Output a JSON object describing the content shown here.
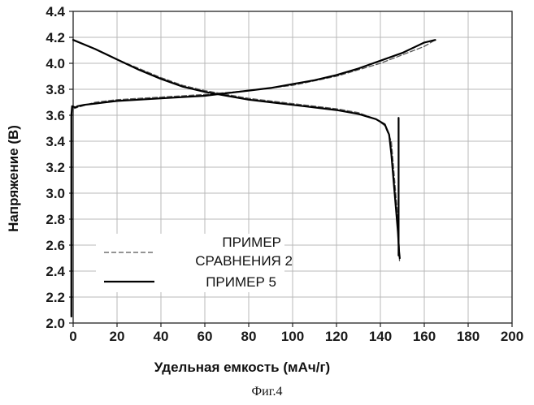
{
  "figure_caption": "Фиг.4",
  "chart_data": {
    "type": "line",
    "title": "",
    "xlabel": "Удельная емкость (мАч/г)",
    "ylabel": "Напряжение (В)",
    "xlim": [
      0,
      200
    ],
    "ylim": [
      2.0,
      4.4
    ],
    "x_ticks": [
      "0",
      "20",
      "40",
      "60",
      "80",
      "100",
      "120",
      "140",
      "160",
      "180",
      "200"
    ],
    "y_ticks": [
      "2.0",
      "2.2",
      "2.4",
      "2.6",
      "2.8",
      "3.0",
      "3.2",
      "3.4",
      "3.6",
      "3.8",
      "4.0",
      "4.2",
      "4.4"
    ],
    "grid": true,
    "legend_position": "lower-left",
    "series": [
      {
        "name": "ПРИМЕР СРАВНЕНИЯ 2",
        "legend_lines": [
          "ПРИМЕР",
          "СРАВНЕНИЯ 2"
        ],
        "style": "dashed",
        "color": "#555555",
        "segments": [
          [
            [
              0,
              4.18
            ],
            [
              10,
              4.11
            ],
            [
              20,
              4.03
            ],
            [
              30,
              3.96
            ],
            [
              40,
              3.89
            ],
            [
              50,
              3.83
            ],
            [
              60,
              3.79
            ],
            [
              70,
              3.76
            ],
            [
              80,
              3.73
            ],
            [
              90,
              3.71
            ],
            [
              100,
              3.69
            ],
            [
              110,
              3.67
            ],
            [
              120,
              3.65
            ],
            [
              130,
              3.62
            ],
            [
              138,
              3.57
            ],
            [
              142,
              3.52
            ],
            [
              145,
              3.4
            ],
            [
              146,
              3.2
            ],
            [
              147,
              3.0
            ],
            [
              148,
              2.8
            ],
            [
              148.5,
              2.6
            ],
            [
              148.7,
              2.48
            ]
          ],
          [
            [
              0,
              3.65
            ],
            [
              10,
              3.7
            ],
            [
              20,
              3.72
            ],
            [
              40,
              3.74
            ],
            [
              60,
              3.76
            ],
            [
              80,
              3.79
            ],
            [
              100,
              3.83
            ],
            [
              120,
              3.9
            ],
            [
              140,
              4.0
            ],
            [
              160,
              4.13
            ],
            [
              165,
              4.18
            ]
          ]
        ]
      },
      {
        "name": "ПРИМЕР 5",
        "legend_lines": [
          "ПРИМЕР 5"
        ],
        "style": "solid",
        "color": "#000000",
        "segments": [
          [
            [
              0,
              4.18
            ],
            [
              10,
              4.11
            ],
            [
              20,
              4.03
            ],
            [
              30,
              3.95
            ],
            [
              40,
              3.88
            ],
            [
              50,
              3.82
            ],
            [
              60,
              3.78
            ],
            [
              70,
              3.75
            ],
            [
              80,
              3.72
            ],
            [
              90,
              3.7
            ],
            [
              100,
              3.68
            ],
            [
              110,
              3.66
            ],
            [
              120,
              3.64
            ],
            [
              130,
              3.61
            ],
            [
              138,
              3.57
            ],
            [
              142,
              3.53
            ],
            [
              144,
              3.45
            ],
            [
              145,
              3.3
            ],
            [
              146,
              3.1
            ],
            [
              147,
              2.9
            ],
            [
              148,
              2.7
            ],
            [
              148.5,
              2.55
            ],
            [
              148.8,
              2.5
            ]
          ],
          [
            [
              -0.8,
              2.05
            ],
            [
              -0.8,
              3.6
            ],
            [
              -0.5,
              3.67
            ],
            [
              1,
              3.66
            ],
            [
              2,
              3.67
            ],
            [
              5,
              3.68
            ],
            [
              10,
              3.69
            ],
            [
              20,
              3.71
            ],
            [
              40,
              3.73
            ],
            [
              60,
              3.75
            ],
            [
              70,
              3.77
            ],
            [
              80,
              3.79
            ],
            [
              90,
              3.81
            ],
            [
              100,
              3.84
            ],
            [
              110,
              3.87
            ],
            [
              120,
              3.91
            ],
            [
              130,
              3.96
            ],
            [
              140,
              4.02
            ],
            [
              150,
              4.08
            ],
            [
              160,
              4.16
            ],
            [
              165,
              4.18
            ]
          ],
          [
            [
              148.3,
              3.58
            ],
            [
              148.3,
              2.52
            ]
          ]
        ]
      }
    ]
  }
}
